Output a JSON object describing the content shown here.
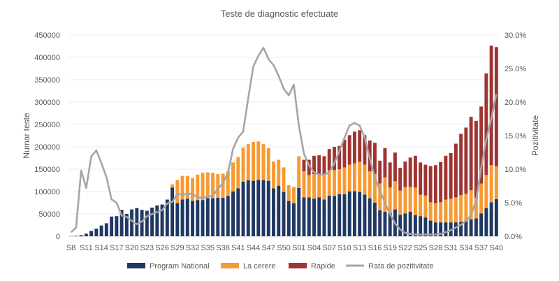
{
  "chart_data": {
    "type": "bar",
    "stacked": true,
    "title": "Teste de diagnostic efectuate",
    "ylabel": "Numar teste",
    "y2label": "Pozitivitate",
    "ylim": [
      0,
      450000
    ],
    "yticks": [
      "0",
      "50000",
      "100000",
      "150000",
      "200000",
      "250000",
      "300000",
      "350000",
      "400000",
      "450000"
    ],
    "y2lim": [
      0,
      30
    ],
    "y2ticks": [
      "0.0%",
      "5.0%",
      "10.0%",
      "15.0%",
      "20.0%",
      "25.0%",
      "30.0%"
    ],
    "grid": true,
    "legend_position": "bottom",
    "categories": [
      "S8",
      "S9",
      "S10",
      "S11",
      "S12",
      "S13",
      "S14",
      "S15",
      "S16",
      "S17",
      "S18",
      "S19",
      "S20",
      "S21",
      "S22",
      "S23",
      "S24",
      "S25",
      "S26",
      "S27",
      "S28",
      "S29",
      "S30",
      "S31",
      "S32",
      "S33",
      "S34",
      "S35",
      "S36",
      "S37",
      "S38",
      "S39",
      "S40",
      "S41",
      "S42",
      "S43",
      "S44",
      "S45",
      "S46",
      "S47",
      "S48",
      "S49",
      "S50",
      "S51",
      "S52",
      "S01",
      "S02",
      "S03",
      "S04",
      "S05",
      "S06",
      "S07",
      "S08",
      "S09",
      "S10",
      "S11",
      "S12",
      "S13",
      "S14",
      "S15",
      "S16",
      "S17",
      "S18",
      "S19",
      "S20",
      "S21",
      "S22",
      "S23",
      "S24",
      "S25",
      "S26",
      "S27",
      "S28",
      "S29",
      "S30",
      "S31",
      "S32",
      "S33",
      "S34",
      "S35",
      "S36",
      "S37",
      "S38",
      "S39",
      "S40"
    ],
    "series": [
      {
        "name": "Program National",
        "kind": "bar",
        "color": "#203864",
        "values": [
          500,
          1000,
          2500,
          5700,
          12000,
          17000,
          24000,
          29000,
          44000,
          45000,
          59000,
          50000,
          60000,
          63000,
          59000,
          57000,
          64000,
          69000,
          71000,
          82000,
          109000,
          74000,
          82000,
          84000,
          79000,
          81000,
          81000,
          85000,
          85000,
          86000,
          86000,
          90000,
          100000,
          107000,
          122000,
          125000,
          124000,
          126000,
          125000,
          124000,
          107000,
          113000,
          99000,
          79000,
          74000,
          108000,
          87000,
          87000,
          84000,
          87000,
          82000,
          91000,
          90000,
          94000,
          94000,
          100000,
          101000,
          99000,
          93000,
          85000,
          75000,
          58000,
          55000,
          52000,
          60000,
          48000,
          51000,
          55000,
          47000,
          45000,
          42000,
          35000,
          31000,
          31000,
          31000,
          31000,
          31000,
          32000,
          35000,
          38000,
          40000,
          51000,
          63000,
          76000,
          83000
        ]
      },
      {
        "name": "La cerere",
        "kind": "bar",
        "color": "#F79A33",
        "values": [
          0,
          0,
          0,
          0,
          0,
          0,
          0,
          0,
          0,
          0,
          0,
          0,
          0,
          0,
          0,
          0,
          0,
          0,
          0,
          0,
          7000,
          52000,
          53000,
          51000,
          51000,
          57000,
          61000,
          58000,
          57000,
          53000,
          54000,
          55000,
          65000,
          70000,
          76000,
          81000,
          87000,
          86000,
          81000,
          73000,
          60000,
          58000,
          55000,
          35000,
          36000,
          71000,
          58000,
          50000,
          55000,
          51000,
          55000,
          56000,
          58000,
          56000,
          60000,
          60000,
          62000,
          67000,
          67000,
          60000,
          64000,
          60000,
          77000,
          57000,
          63000,
          54000,
          59000,
          55000,
          62000,
          48000,
          49000,
          41000,
          43000,
          45000,
          51000,
          53000,
          56000,
          60000,
          60000,
          65000,
          46000,
          67000,
          74000,
          83000,
          73000
        ]
      },
      {
        "name": "Rapide",
        "kind": "bar",
        "color": "#9E3532",
        "values": [
          0,
          0,
          0,
          0,
          0,
          0,
          0,
          0,
          0,
          0,
          0,
          0,
          0,
          0,
          0,
          0,
          0,
          0,
          0,
          0,
          0,
          0,
          0,
          0,
          0,
          0,
          0,
          0,
          0,
          0,
          0,
          0,
          0,
          0,
          0,
          0,
          0,
          0,
          0,
          0,
          0,
          0,
          0,
          0,
          0,
          0,
          26000,
          34000,
          41000,
          43000,
          42000,
          48000,
          52000,
          52000,
          62000,
          66000,
          71000,
          71000,
          66000,
          69000,
          70000,
          51000,
          65000,
          56000,
          64000,
          51000,
          57000,
          66000,
          71000,
          72000,
          69000,
          81000,
          85000,
          90000,
          98000,
          102000,
          120000,
          137000,
          148000,
          164000,
          172000,
          172000,
          227000,
          267000,
          267000
        ]
      },
      {
        "name": "Rata de pozitivitate",
        "kind": "line",
        "axis": "right",
        "unit": "%",
        "color": "#A5A5A5",
        "values": [
          0.6,
          1.3,
          9.8,
          7.2,
          11.9,
          12.8,
          10.9,
          8.8,
          5.5,
          5.0,
          3.1,
          2.9,
          2.3,
          1.8,
          2.2,
          3.0,
          3.3,
          3.6,
          3.9,
          4.9,
          5.1,
          6.3,
          6.2,
          6.3,
          6.3,
          5.8,
          5.7,
          5.9,
          6.0,
          7.1,
          7.9,
          9.5,
          13.0,
          14.7,
          15.6,
          20.6,
          25.3,
          26.9,
          28.1,
          26.4,
          25.5,
          23.9,
          22.0,
          21.0,
          22.6,
          16.5,
          12.3,
          10.6,
          9.5,
          9.2,
          9.2,
          9.5,
          10.9,
          12.7,
          14.7,
          16.5,
          16.9,
          16.5,
          14.7,
          11.6,
          8.8,
          6.8,
          5.0,
          3.3,
          1.9,
          1.0,
          0.5,
          0.35,
          0.25,
          0.25,
          0.25,
          0.25,
          0.25,
          0.35,
          0.6,
          0.9,
          1.3,
          1.7,
          2.3,
          3.1,
          5.4,
          10.2,
          14.4,
          17.5,
          21.2
        ]
      }
    ]
  }
}
